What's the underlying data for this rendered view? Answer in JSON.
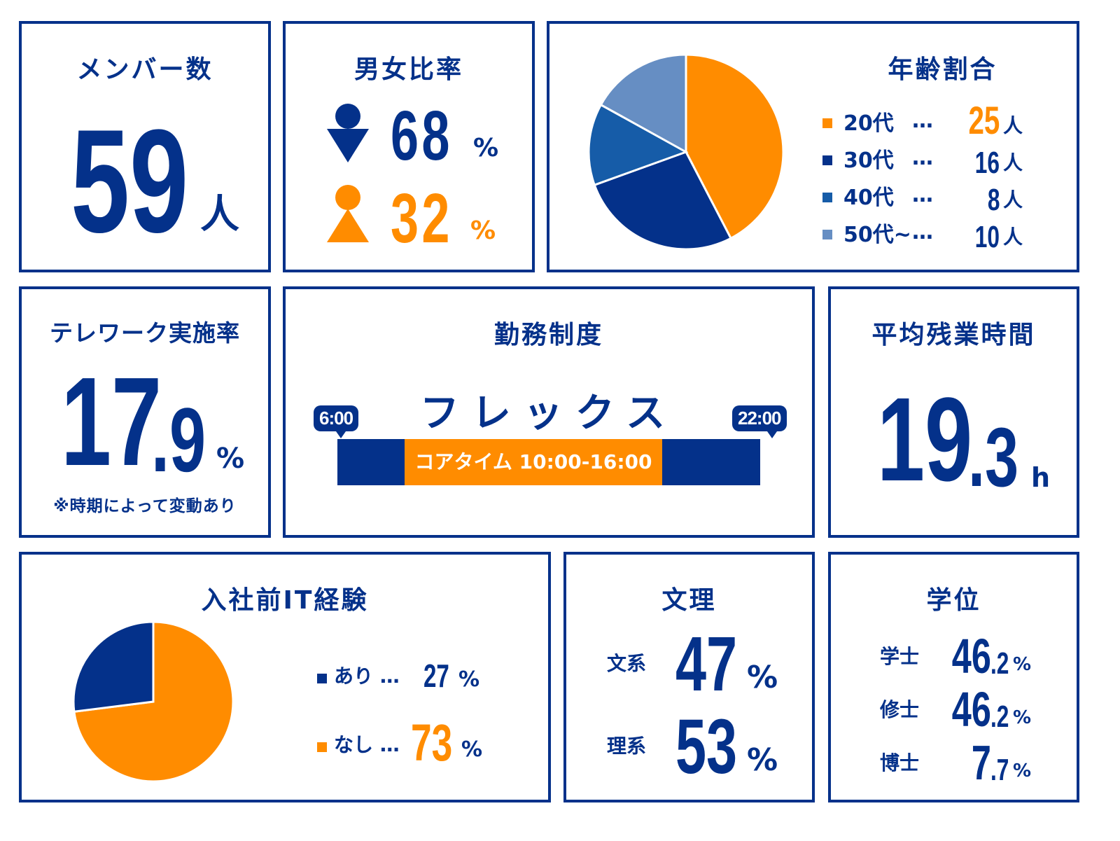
{
  "colors": {
    "navy": "#04318a",
    "orange": "#ff8c00",
    "blue": "#165ca8",
    "light_blue": "#668ec3"
  },
  "members": {
    "title": "メンバー数",
    "value": "59",
    "unit": "人"
  },
  "gender": {
    "title": "男女比率",
    "male_icon": "male-person-icon",
    "female_icon": "female-person-icon",
    "male": "68",
    "female": "32",
    "unit": "%"
  },
  "age": {
    "title": "年齢割合",
    "items": [
      {
        "label": "20代",
        "dots": "…",
        "value": "25",
        "unit": "人"
      },
      {
        "label": "30代",
        "dots": "…",
        "value": "16",
        "unit": "人"
      },
      {
        "label": "40代",
        "dots": "…",
        "value": "8",
        "unit": "人"
      },
      {
        "label": "50代~",
        "dots": "…",
        "value": "10",
        "unit": "人"
      }
    ]
  },
  "telework": {
    "title": "テレワーク実施率",
    "int": "17",
    "dec": ".9",
    "unit": "%",
    "note": "※時期によって変動あり"
  },
  "work": {
    "title": "勤務制度",
    "system": "フレックス",
    "start": "6:00",
    "end": "22:00",
    "core": "コアタイム 10:00-16:00"
  },
  "overtime": {
    "title": "平均残業時間",
    "int": "19",
    "dec": ".3",
    "unit": "h"
  },
  "it": {
    "title": "入社前IT経験",
    "items": [
      {
        "label": "あり …",
        "value": "27",
        "unit": "%"
      },
      {
        "label": "なし …",
        "value": "73",
        "unit": "%"
      }
    ]
  },
  "major": {
    "title": "文理",
    "items": [
      {
        "label": "文系",
        "value": "47",
        "unit": "%"
      },
      {
        "label": "理系",
        "value": "53",
        "unit": "%"
      }
    ]
  },
  "degree": {
    "title": "学位",
    "items": [
      {
        "label": "学士",
        "int": "46",
        ".dec": "",
        "dec": ".2",
        "unit": "%"
      },
      {
        "label": "修士",
        "int": "46",
        "dec": ".2",
        "unit": "%"
      },
      {
        "label": "博士",
        "int": "7",
        "dec": ".7",
        "unit": "%"
      }
    ]
  },
  "chart_data": [
    {
      "type": "pie",
      "title": "年齢割合",
      "categories": [
        "20代",
        "30代",
        "40代",
        "50代~"
      ],
      "values": [
        25,
        16,
        8,
        10
      ],
      "colors": [
        "#ff8c00",
        "#04318a",
        "#165ca8",
        "#668ec3"
      ]
    },
    {
      "type": "pie",
      "title": "入社前IT経験",
      "categories": [
        "なし",
        "あり"
      ],
      "values": [
        73,
        27
      ],
      "colors": [
        "#ff8c00",
        "#04318a"
      ]
    }
  ]
}
